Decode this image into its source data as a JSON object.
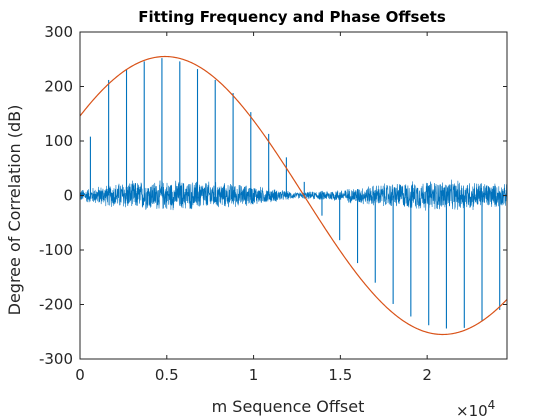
{
  "chart_data": {
    "type": "line",
    "title": "Fitting Frequency and Phase Offsets",
    "xlabel": "m Sequence Offset",
    "ylabel": "Degree of Correlation (dB)",
    "x_exponent_base": "×10",
    "x_exponent_power": "4",
    "xlim": [
      0,
      24600
    ],
    "ylim": [
      -300,
      300
    ],
    "x_ticks": [
      0,
      5000,
      10000,
      15000,
      20000
    ],
    "x_tick_labels": [
      "0",
      "0.5",
      "1",
      "1.5",
      "2"
    ],
    "y_ticks": [
      -300,
      -200,
      -100,
      0,
      100,
      200,
      300
    ],
    "y_tick_labels": [
      "-300",
      "-200",
      "-100",
      "0",
      "100",
      "200",
      "300"
    ],
    "grid": false,
    "box": true,
    "series": [
      {
        "kind": "correlation-noise",
        "color": "#0072BD",
        "noise_envelope": {
          "x": [
            0,
            2500,
            5000,
            7500,
            10000,
            12500,
            15000,
            17500,
            20000,
            22500,
            24600
          ],
          "amplitude": [
            12,
            28,
            30,
            28,
            20,
            6,
            12,
            24,
            30,
            30,
            22
          ]
        }
      },
      {
        "kind": "correlation-peaks",
        "color": "#0072BD",
        "x": [
          600,
          1650,
          2680,
          3700,
          4720,
          5750,
          6770,
          7790,
          8820,
          9840,
          10870,
          11890,
          12920,
          13940,
          14960,
          15990,
          17010,
          18040,
          19060,
          20090,
          21110,
          22140,
          23160,
          24180
        ],
        "y": [
          108,
          212,
          232,
          246,
          252,
          246,
          232,
          212,
          188,
          153,
          113,
          70,
          25,
          -37,
          -82,
          -124,
          -160,
          -199,
          -222,
          -238,
          -244,
          -243,
          -230,
          -210
        ]
      },
      {
        "kind": "sinusoid-fit",
        "color": "#D95319",
        "amplitude": 255,
        "period": 32000,
        "x_at_peak": 4900,
        "y_at_x0": 152,
        "y_at_xmax": -200
      }
    ]
  }
}
